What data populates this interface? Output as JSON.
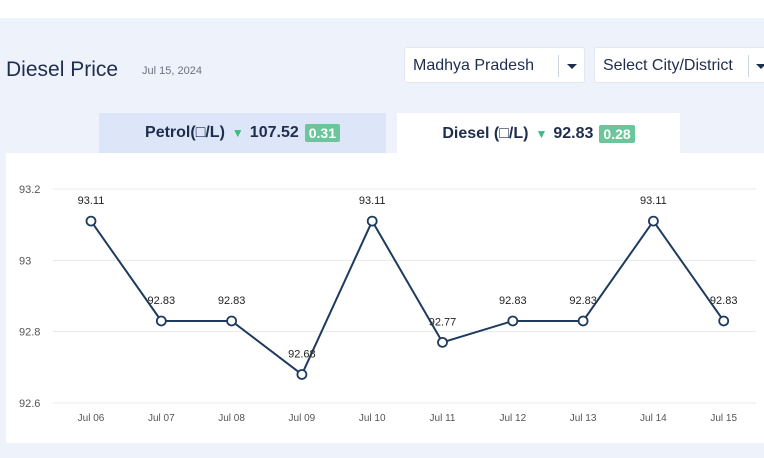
{
  "header": {
    "title": "Diesel Price",
    "date": "Jul 15, 2024"
  },
  "selectors": {
    "state": "Madhya Pradesh",
    "city": "Select City/District"
  },
  "tabs": [
    {
      "label": "Petrol(□/L)",
      "price": "107.52",
      "change": "0.31",
      "trend": "down"
    },
    {
      "label": "Diesel (□/L)",
      "price": "92.83",
      "change": "0.28",
      "trend": "down"
    }
  ],
  "colors": {
    "line": "#1f3a5f",
    "badge": "#6dc59c",
    "down_arrow": "#3dbb85"
  },
  "chart_data": {
    "type": "line",
    "categories": [
      "Jul 06",
      "Jul 07",
      "Jul 08",
      "Jul 09",
      "Jul 10",
      "Jul 11",
      "Jul 12",
      "Jul 13",
      "Jul 14",
      "Jul 15"
    ],
    "values": [
      93.11,
      92.83,
      92.83,
      92.68,
      93.11,
      92.77,
      92.83,
      92.83,
      93.11,
      92.83
    ],
    "data_labels": [
      "93.11",
      "92.83",
      "92.83",
      "92.68",
      "93.11",
      "92.77",
      "92.83",
      "92.83",
      "93.11",
      "92.83"
    ],
    "yticks": [
      "92.6",
      "92.8",
      "93",
      "93.2"
    ],
    "ytick_values": [
      92.6,
      92.8,
      93.0,
      93.2
    ],
    "ylim": [
      92.6,
      93.2
    ],
    "grid": true,
    "legend": "none"
  }
}
